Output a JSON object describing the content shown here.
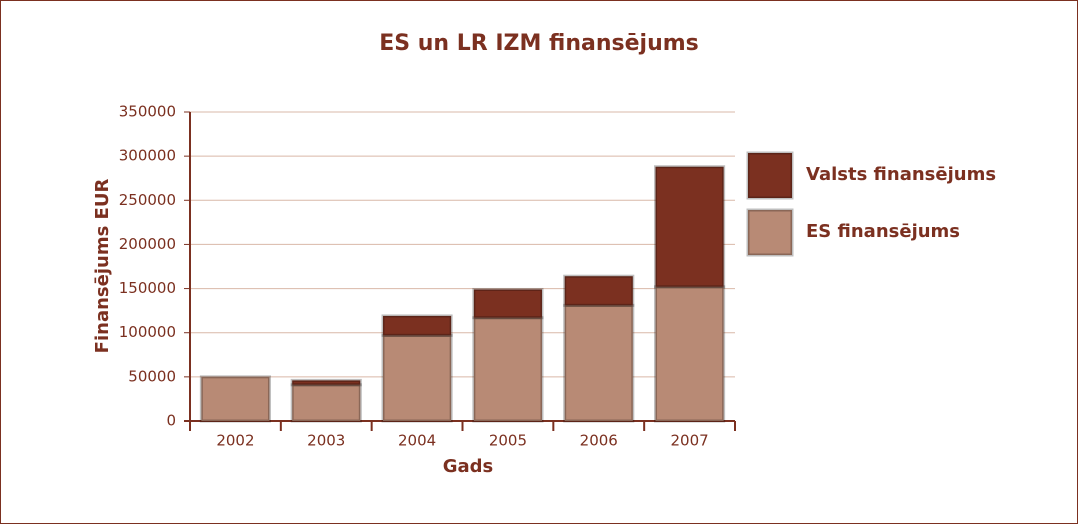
{
  "chart_data": {
    "type": "stacked-bar",
    "title": "ES un LR IZM finansējums",
    "x_label": "Gads",
    "y_label": "Finansējums EUR",
    "categories": [
      "2002",
      "2003",
      "2004",
      "2005",
      "2006",
      "2007"
    ],
    "series": [
      {
        "name": "ES finansējums",
        "color": "#b88a75",
        "values": [
          50000,
          41000,
          97000,
          117000,
          131000,
          152000
        ]
      },
      {
        "name": "Valsts finansējums",
        "color": "#7b3020",
        "values": [
          0,
          5000,
          22000,
          32000,
          33000,
          136000
        ]
      }
    ],
    "ylim": [
      0,
      350000
    ],
    "yticks": [
      0,
      50000,
      100000,
      150000,
      200000,
      250000,
      300000,
      350000
    ],
    "grid": true,
    "legend": "right"
  }
}
